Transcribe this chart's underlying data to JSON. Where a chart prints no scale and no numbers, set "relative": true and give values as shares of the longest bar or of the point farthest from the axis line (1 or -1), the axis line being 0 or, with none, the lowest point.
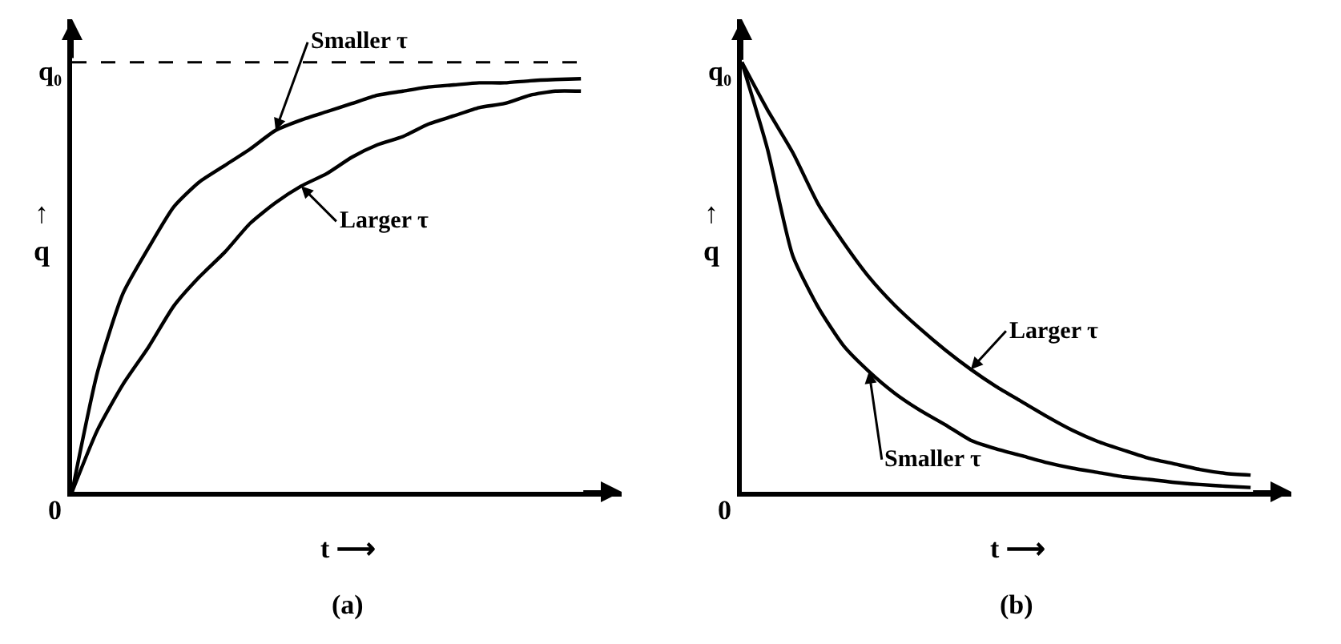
{
  "chart_data": [
    {
      "type": "line",
      "relative": true,
      "xlabel": "t ⟶",
      "ylabel": "↑\nq",
      "annotations": [
        "q₀",
        "0",
        "(a)"
      ],
      "categories": [
        null,
        null,
        null,
        null,
        null,
        null,
        null,
        null,
        null,
        null,
        null,
        null,
        null,
        null,
        null,
        null,
        null,
        null,
        null,
        null,
        null
      ],
      "ref_lines": [
        {
          "axis": "y",
          "value": 1.04,
          "line_style": "dashed",
          "color": "#000000"
        }
      ],
      "series": [
        {
          "name": "Smaller τ",
          "color": "#000000",
          "values": [
            0,
            0.29,
            0.48,
            0.59,
            0.69,
            0.75,
            0.79,
            0.83,
            0.875,
            0.9,
            0.92,
            0.94,
            0.96,
            0.97,
            0.98,
            0.985,
            0.99,
            0.99,
            0.995,
            0.998,
            1
          ]
        },
        {
          "name": "Larger τ",
          "color": "#000000",
          "values": [
            0,
            0.15,
            0.26,
            0.35,
            0.45,
            0.52,
            0.58,
            0.65,
            0.7,
            0.74,
            0.77,
            0.81,
            0.84,
            0.86,
            0.89,
            0.91,
            0.93,
            0.94,
            0.96,
            0.97,
            0.97
          ]
        }
      ]
    },
    {
      "type": "line",
      "relative": true,
      "xlabel": "t ⟶",
      "ylabel": "↑\nq",
      "annotations": [
        "q₀",
        "0",
        "(b)"
      ],
      "categories": [
        null,
        null,
        null,
        null,
        null,
        null,
        null,
        null,
        null,
        null,
        null,
        null,
        null,
        null,
        null,
        null,
        null,
        null,
        null,
        null,
        null
      ],
      "series": [
        {
          "name": "Smaller τ",
          "color": "#000000",
          "values": [
            1,
            0.8,
            0.55,
            0.43,
            0.34,
            0.28,
            0.23,
            0.19,
            0.156,
            0.12,
            0.1,
            0.084,
            0.068,
            0.055,
            0.045,
            0.035,
            0.029,
            0.022,
            0.017,
            0.013,
            0.01
          ]
        },
        {
          "name": "Larger τ",
          "color": "#000000",
          "values": [
            1,
            0.89,
            0.79,
            0.67,
            0.58,
            0.5,
            0.435,
            0.38,
            0.33,
            0.285,
            0.245,
            0.21,
            0.175,
            0.143,
            0.117,
            0.097,
            0.078,
            0.065,
            0.052,
            0.043,
            0.039
          ]
        }
      ]
    }
  ]
}
